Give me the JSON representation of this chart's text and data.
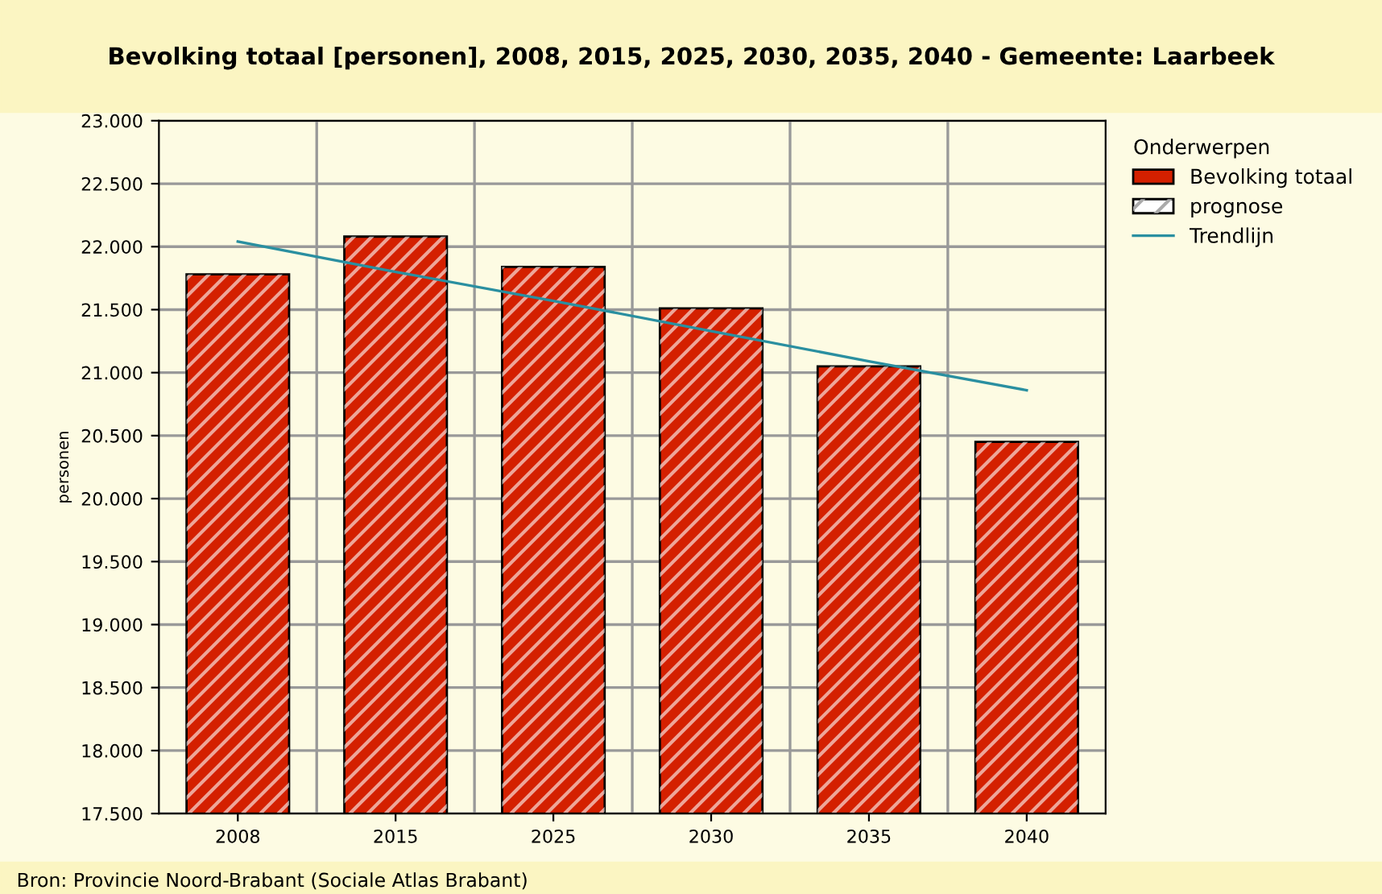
{
  "chart_data": {
    "type": "bar",
    "title": "Bevolking totaal [personen], 2008, 2015, 2025, 2030, 2035, 2040 - Gemeente: Laarbeek",
    "ylabel": "personen",
    "legend_title": "Onderwerpen",
    "categories": [
      "2008",
      "2015",
      "2025",
      "2030",
      "2035",
      "2040"
    ],
    "series": [
      {
        "name": "Bevolking totaal",
        "color": "#d42000",
        "values": [
          21780,
          22080,
          21840,
          21510,
          21050,
          20450
        ]
      },
      {
        "name": "prognose",
        "type": "bar",
        "color": "#ffffff",
        "values": [
          null,
          null,
          null,
          null,
          null,
          null
        ]
      },
      {
        "name": "Trendlijn",
        "type": "line",
        "color": "#2a8fa0",
        "values": [
          22040,
          21800,
          21570,
          21330,
          21090,
          20860
        ]
      }
    ],
    "ylim": [
      17500,
      23000
    ],
    "yticks": [
      {
        "value": 17500,
        "label": "17.500"
      },
      {
        "value": 18000,
        "label": "18.000"
      },
      {
        "value": 18500,
        "label": "18.500"
      },
      {
        "value": 19000,
        "label": "19.000"
      },
      {
        "value": 19500,
        "label": "19.500"
      },
      {
        "value": 20000,
        "label": "20.000"
      },
      {
        "value": 20500,
        "label": "20.500"
      },
      {
        "value": 21000,
        "label": "21.000"
      },
      {
        "value": 21500,
        "label": "21.500"
      },
      {
        "value": 22000,
        "label": "22.000"
      },
      {
        "value": 22500,
        "label": "22.500"
      },
      {
        "value": 23000,
        "label": "23.000"
      }
    ],
    "grid": true,
    "legend": "right",
    "annotations": [
      "Bron: Provincie Noord-Brabant (Sociale Atlas Brabant)"
    ]
  }
}
